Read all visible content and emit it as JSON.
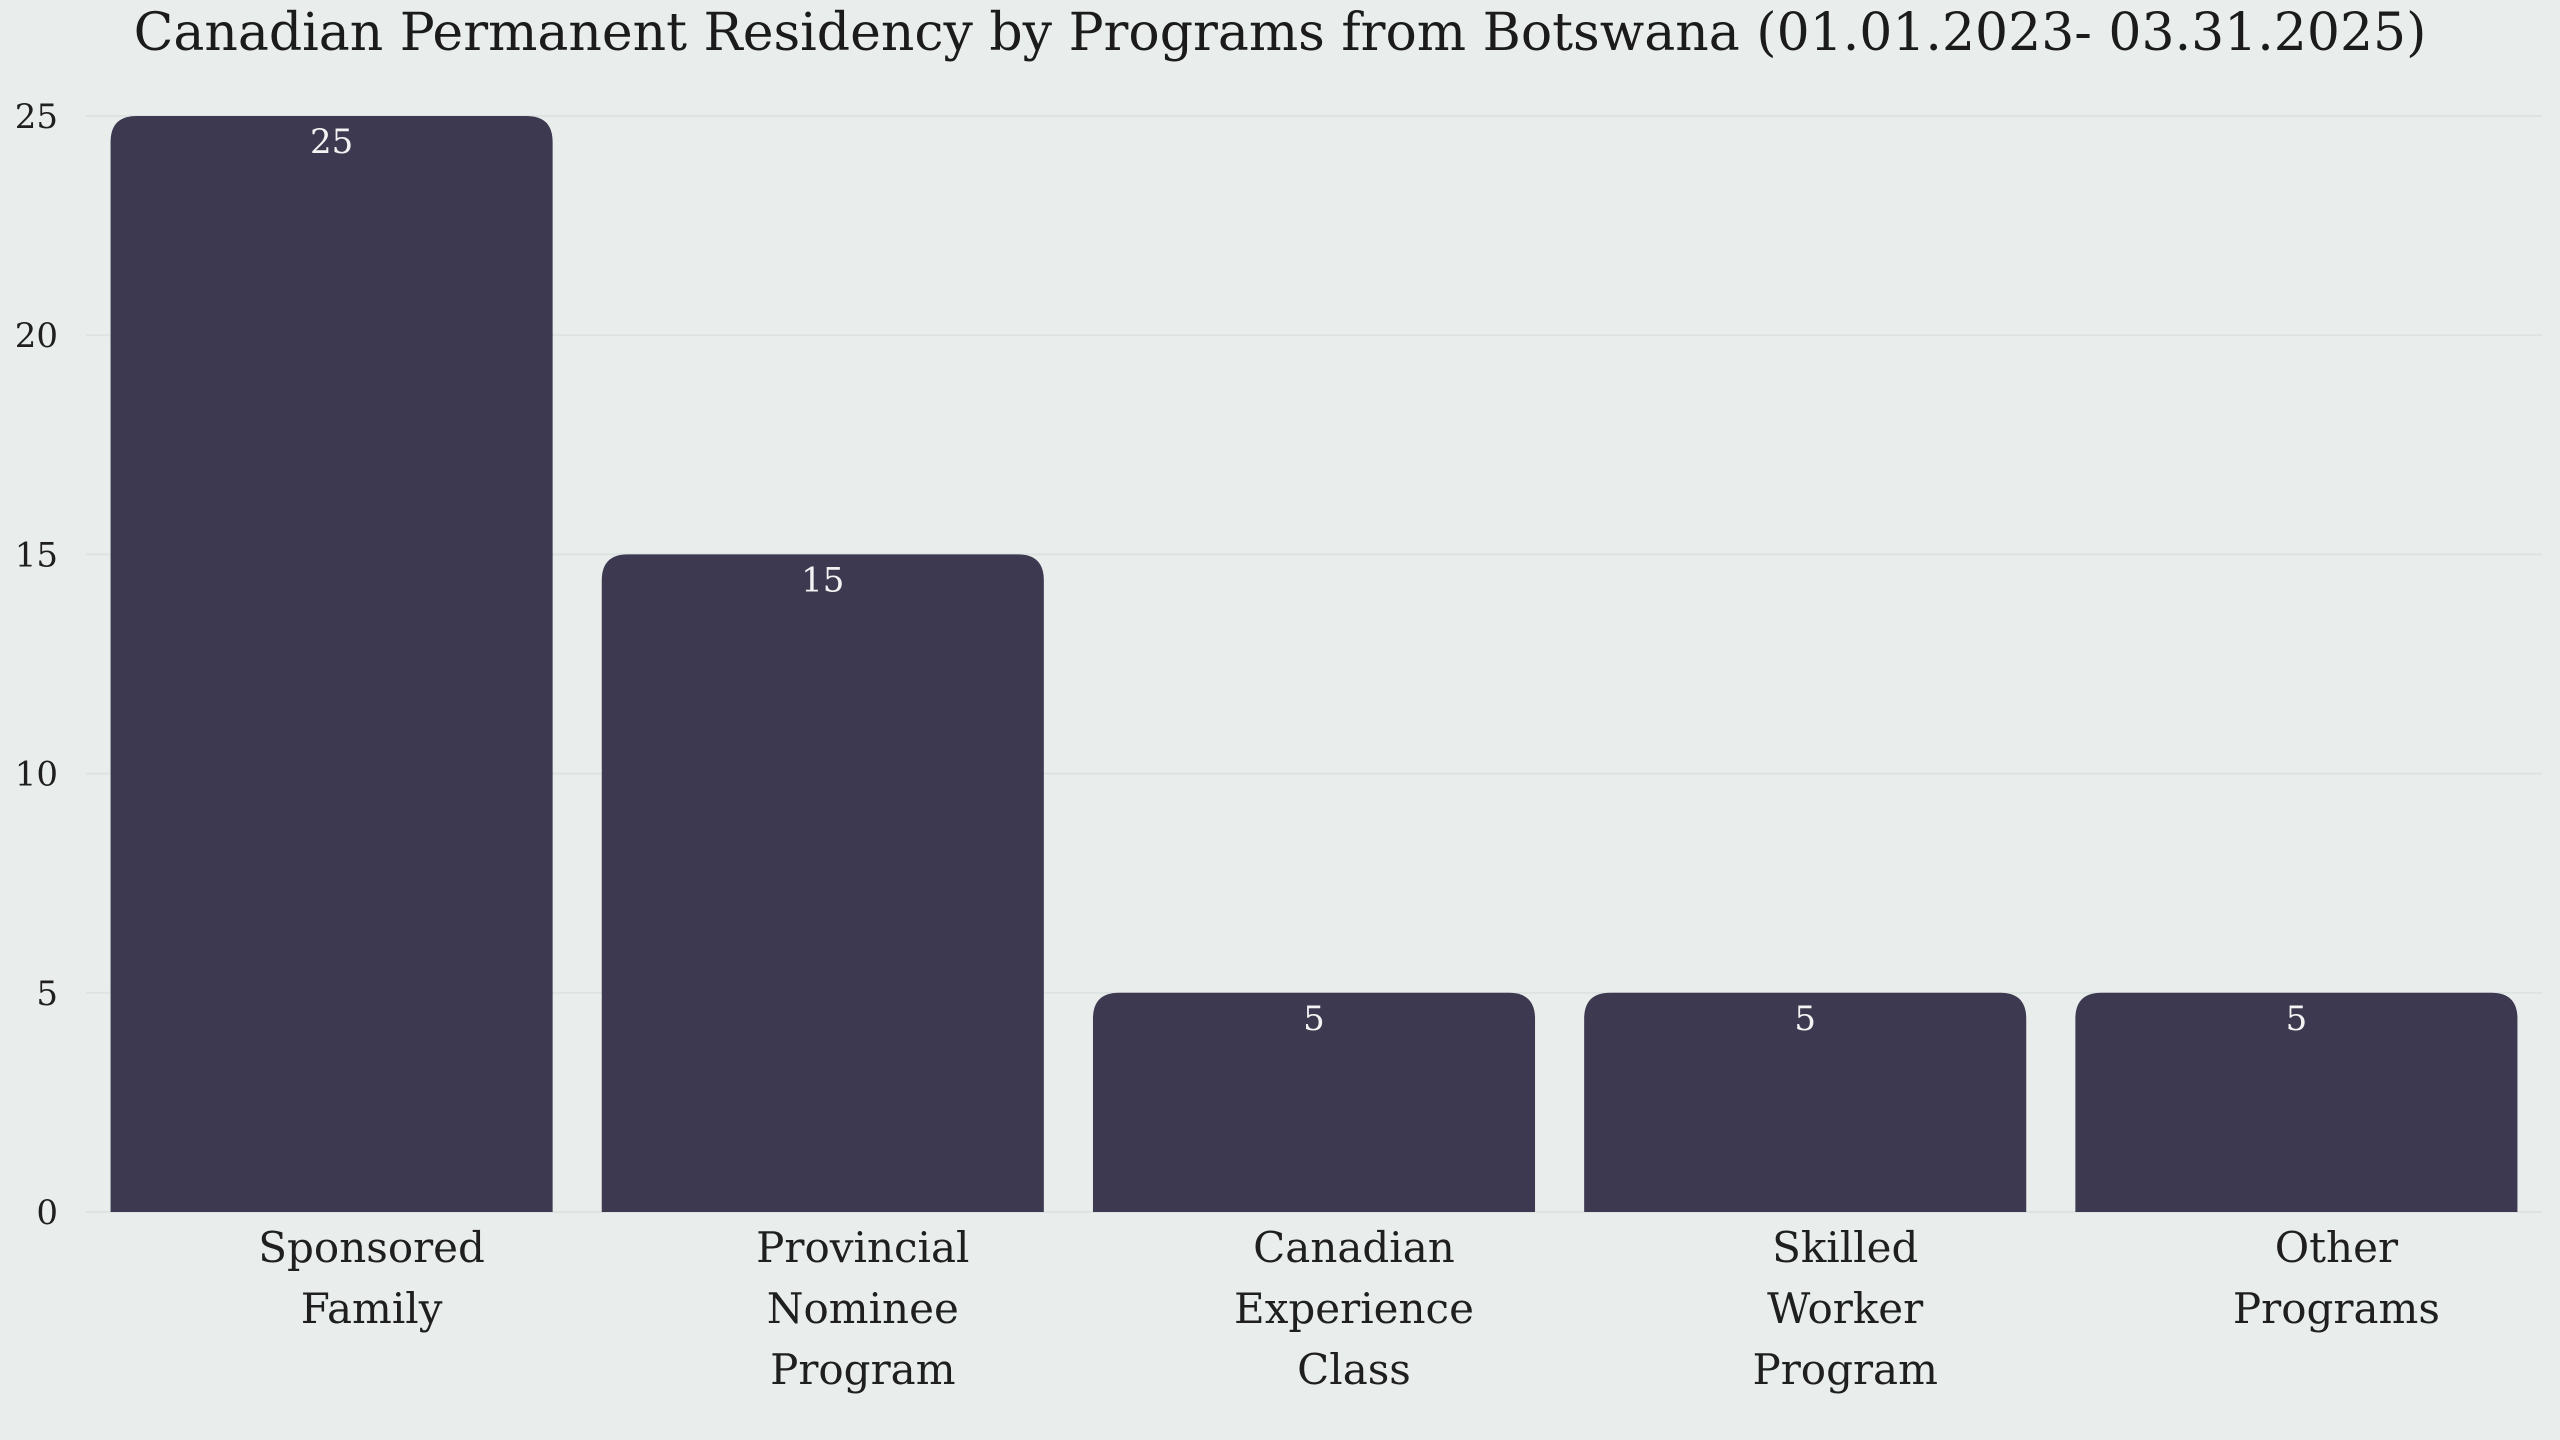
{
  "chart_data": {
    "type": "bar",
    "title": "Canadian Permanent Residency by Programs from Botswana (01.01.2023- 03.31.2025)",
    "categories": [
      [
        "Sponsored",
        "Family"
      ],
      [
        "Provincial",
        "Nominee",
        "Program"
      ],
      [
        "Canadian",
        "Experience",
        "Class"
      ],
      [
        "Skilled",
        "Worker",
        "Program"
      ],
      [
        "Other",
        "Programs"
      ]
    ],
    "values": [
      25,
      15,
      5,
      5,
      5
    ],
    "xlabel": "",
    "ylabel": "",
    "ylim": [
      0,
      25
    ],
    "yticks": [
      0,
      5,
      10,
      15,
      20,
      25
    ],
    "grid": true,
    "data_labels": [
      "25",
      "15",
      "5",
      "5",
      "5"
    ],
    "colors": {
      "bar": "#3d3950",
      "background": "#e9eeec",
      "grid": "#dde3e1",
      "data_label": "#f3f3f3"
    }
  }
}
